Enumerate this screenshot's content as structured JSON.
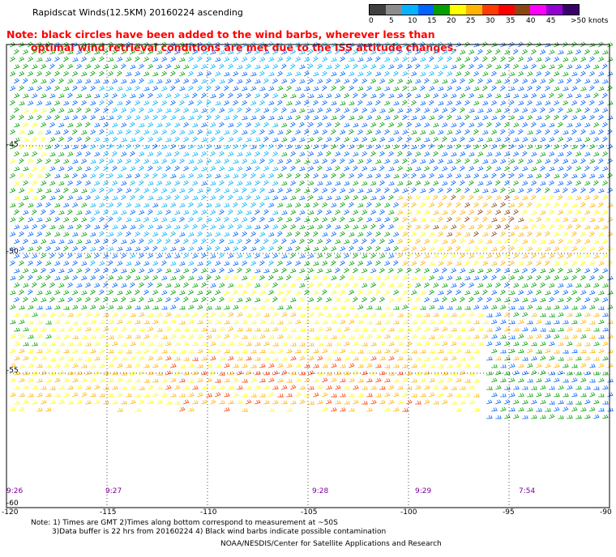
{
  "header": {
    "title": "Rapidscat Winds(12.5KM) 20160224 ascending"
  },
  "note": {
    "line1": "Note: black circles have been added to the wind barbs, wherever less than",
    "line2": "optimal wind retrieval conditions are met due to the ISS attitude changes."
  },
  "colorbar": {
    "labels": [
      "0",
      "5",
      "10",
      "15",
      "20",
      "25",
      "30",
      "35",
      "40",
      "45",
      ">50 knots"
    ],
    "colors": [
      "#404040",
      "#8c8c8c",
      "#00b4ff",
      "#0064ff",
      "#00a000",
      "#ffff00",
      "#ffb400",
      "#ff3c00",
      "#ff0000",
      "#8b4513",
      "#ff00ff",
      "#9400d3",
      "#3a006a"
    ]
  },
  "axes": {
    "lat_labels": [
      "-45",
      "-50",
      "-55",
      "-60"
    ],
    "lon_labels": [
      "-120",
      "-115",
      "-110",
      "-105",
      "-100",
      "-95",
      "-90"
    ]
  },
  "times": [
    "9:26",
    "9:27",
    "9:28",
    "9:29",
    "7:54"
  ],
  "footer": {
    "line1": "Note: 1) Times are GMT 2)Times along bottom correspond to measurement at ~50S",
    "line2": "3)Data buffer is 22 hrs from 20160224 4) Black wind barbs indicate possible contamination",
    "credit": "NOAA/NESDIS/Center for Satellite Applications and Research"
  }
}
